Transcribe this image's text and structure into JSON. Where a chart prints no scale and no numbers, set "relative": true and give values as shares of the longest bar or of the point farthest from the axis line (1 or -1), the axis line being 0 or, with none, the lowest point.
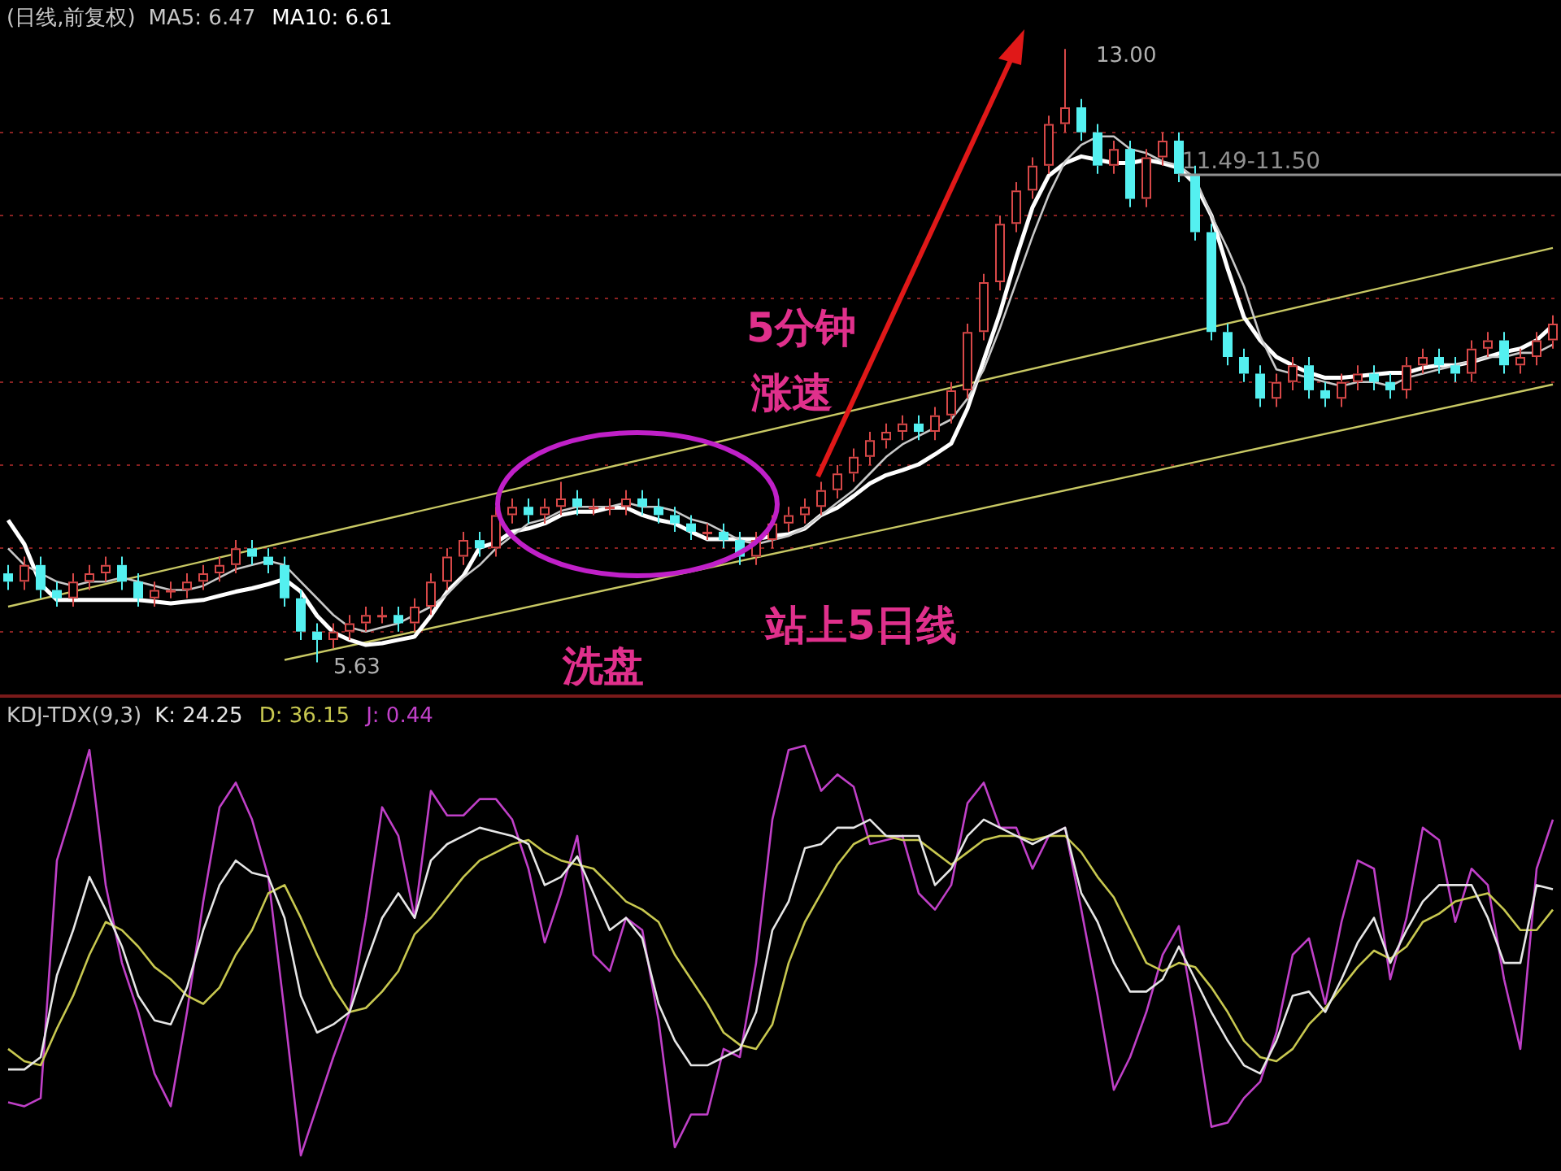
{
  "chart_data": [
    {
      "type": "candlestick",
      "title": "(日线,前复权)",
      "legend": "top left",
      "grid": "y",
      "tick_labels": false,
      "marker": "none",
      "categories": [
        null,
        null,
        null,
        null,
        null,
        null,
        null,
        null,
        null,
        null,
        null,
        null,
        null,
        null,
        null,
        null,
        null,
        null,
        null,
        null,
        null,
        null,
        null,
        null,
        null,
        null,
        null,
        null,
        null,
        null,
        null,
        null,
        null,
        null,
        null,
        null,
        null,
        null,
        null,
        null,
        null,
        null,
        null,
        null,
        null,
        null,
        null,
        null,
        null,
        null,
        null,
        null,
        null,
        null,
        null,
        null,
        null,
        null,
        null,
        null,
        null,
        null,
        null,
        null,
        null,
        null,
        null,
        null,
        null,
        null,
        null,
        null,
        null,
        null,
        null,
        null,
        null,
        null,
        null,
        null,
        null,
        null,
        null,
        null,
        null,
        null,
        null,
        null,
        null,
        null,
        null,
        null,
        null,
        null,
        null,
        null
      ],
      "ohlc": [
        [
          6.7,
          6.8,
          6.5,
          6.6
        ],
        [
          6.6,
          6.9,
          6.5,
          6.8
        ],
        [
          6.8,
          6.9,
          6.4,
          6.5
        ],
        [
          6.5,
          6.6,
          6.3,
          6.4
        ],
        [
          6.4,
          6.7,
          6.3,
          6.6
        ],
        [
          6.6,
          6.8,
          6.5,
          6.7
        ],
        [
          6.7,
          6.9,
          6.6,
          6.8
        ],
        [
          6.8,
          6.9,
          6.5,
          6.6
        ],
        [
          6.6,
          6.7,
          6.3,
          6.4
        ],
        [
          6.4,
          6.6,
          6.3,
          6.5
        ],
        [
          6.5,
          6.6,
          6.4,
          6.5
        ],
        [
          6.5,
          6.7,
          6.4,
          6.6
        ],
        [
          6.6,
          6.8,
          6.5,
          6.7
        ],
        [
          6.7,
          6.9,
          6.6,
          6.8
        ],
        [
          6.8,
          7.1,
          6.7,
          7.0
        ],
        [
          7.0,
          7.1,
          6.8,
          6.9
        ],
        [
          6.9,
          7.0,
          6.7,
          6.8
        ],
        [
          6.8,
          6.9,
          6.3,
          6.4
        ],
        [
          6.4,
          6.5,
          5.9,
          6.0
        ],
        [
          6.0,
          6.1,
          5.63,
          5.9
        ],
        [
          5.9,
          6.1,
          5.8,
          6.0
        ],
        [
          6.0,
          6.2,
          5.9,
          6.1
        ],
        [
          6.1,
          6.3,
          6.0,
          6.2
        ],
        [
          6.2,
          6.3,
          6.1,
          6.2
        ],
        [
          6.2,
          6.3,
          6.0,
          6.1
        ],
        [
          6.1,
          6.4,
          6.0,
          6.3
        ],
        [
          6.3,
          6.7,
          6.2,
          6.6
        ],
        [
          6.6,
          7.0,
          6.5,
          6.9
        ],
        [
          6.9,
          7.2,
          6.8,
          7.1
        ],
        [
          7.1,
          7.2,
          6.9,
          7.0
        ],
        [
          7.0,
          7.5,
          6.9,
          7.4
        ],
        [
          7.4,
          7.6,
          7.3,
          7.5
        ],
        [
          7.5,
          7.6,
          7.3,
          7.4
        ],
        [
          7.4,
          7.6,
          7.3,
          7.5
        ],
        [
          7.5,
          7.8,
          7.4,
          7.6
        ],
        [
          7.6,
          7.7,
          7.4,
          7.5
        ],
        [
          7.5,
          7.6,
          7.4,
          7.5
        ],
        [
          7.5,
          7.6,
          7.4,
          7.5
        ],
        [
          7.5,
          7.7,
          7.4,
          7.6
        ],
        [
          7.6,
          7.7,
          7.4,
          7.5
        ],
        [
          7.5,
          7.6,
          7.3,
          7.4
        ],
        [
          7.4,
          7.5,
          7.2,
          7.3
        ],
        [
          7.3,
          7.4,
          7.1,
          7.2
        ],
        [
          7.2,
          7.3,
          7.1,
          7.2
        ],
        [
          7.2,
          7.3,
          7.0,
          7.1
        ],
        [
          7.1,
          7.2,
          6.8,
          6.9
        ],
        [
          6.9,
          7.2,
          6.8,
          7.1
        ],
        [
          7.1,
          7.4,
          7.0,
          7.3
        ],
        [
          7.3,
          7.5,
          7.2,
          7.4
        ],
        [
          7.4,
          7.6,
          7.3,
          7.5
        ],
        [
          7.5,
          7.8,
          7.4,
          7.7
        ],
        [
          7.7,
          8.0,
          7.6,
          7.9
        ],
        [
          7.9,
          8.2,
          7.8,
          8.1
        ],
        [
          8.1,
          8.4,
          8.0,
          8.3
        ],
        [
          8.3,
          8.5,
          8.2,
          8.4
        ],
        [
          8.4,
          8.6,
          8.3,
          8.5
        ],
        [
          8.5,
          8.6,
          8.3,
          8.4
        ],
        [
          8.4,
          8.7,
          8.3,
          8.6
        ],
        [
          8.6,
          9.0,
          8.5,
          8.9
        ],
        [
          8.9,
          9.7,
          8.8,
          9.6
        ],
        [
          9.6,
          10.3,
          9.5,
          10.2
        ],
        [
          10.2,
          11.0,
          10.1,
          10.9
        ],
        [
          10.9,
          11.4,
          10.8,
          11.3
        ],
        [
          11.3,
          11.7,
          11.2,
          11.6
        ],
        [
          11.6,
          12.2,
          11.5,
          12.1
        ],
        [
          12.1,
          13.0,
          12.0,
          12.3
        ],
        [
          12.3,
          12.4,
          11.9,
          12.0
        ],
        [
          12.0,
          12.1,
          11.5,
          11.6
        ],
        [
          11.6,
          11.9,
          11.5,
          11.8
        ],
        [
          11.8,
          11.9,
          11.1,
          11.2
        ],
        [
          11.2,
          11.8,
          11.1,
          11.7
        ],
        [
          11.7,
          12.0,
          11.6,
          11.9
        ],
        [
          11.9,
          12.0,
          11.4,
          11.5
        ],
        [
          11.5,
          11.6,
          10.7,
          10.8
        ],
        [
          10.8,
          10.9,
          9.5,
          9.6
        ],
        [
          9.6,
          9.7,
          9.2,
          9.3
        ],
        [
          9.3,
          9.4,
          9.0,
          9.1
        ],
        [
          9.1,
          9.2,
          8.7,
          8.8
        ],
        [
          8.8,
          9.1,
          8.7,
          9.0
        ],
        [
          9.0,
          9.3,
          8.9,
          9.2
        ],
        [
          9.2,
          9.3,
          8.8,
          8.9
        ],
        [
          8.9,
          9.0,
          8.7,
          8.8
        ],
        [
          8.8,
          9.1,
          8.7,
          9.0
        ],
        [
          9.0,
          9.2,
          8.9,
          9.1
        ],
        [
          9.1,
          9.2,
          8.9,
          9.0
        ],
        [
          9.0,
          9.1,
          8.8,
          8.9
        ],
        [
          8.9,
          9.3,
          8.8,
          9.2
        ],
        [
          9.2,
          9.4,
          9.1,
          9.3
        ],
        [
          9.3,
          9.4,
          9.1,
          9.2
        ],
        [
          9.2,
          9.3,
          9.0,
          9.1
        ],
        [
          9.1,
          9.5,
          9.0,
          9.4
        ],
        [
          9.4,
          9.6,
          9.3,
          9.5
        ],
        [
          9.5,
          9.6,
          9.1,
          9.2
        ],
        [
          9.2,
          9.4,
          9.1,
          9.3
        ],
        [
          9.3,
          9.6,
          9.2,
          9.5
        ],
        [
          9.5,
          9.8,
          9.4,
          9.7
        ]
      ],
      "series": [
        {
          "name": "MA5: 6.47",
          "type": "line",
          "color": "#c8c8c8",
          "values": [
            7.0,
            6.8,
            6.7,
            6.6,
            6.55,
            6.6,
            6.6,
            6.65,
            6.6,
            6.55,
            6.5,
            6.5,
            6.55,
            6.65,
            6.75,
            6.8,
            6.85,
            6.8,
            6.6,
            6.4,
            6.2,
            6.05,
            6.0,
            6.05,
            6.1,
            6.2,
            6.3,
            6.45,
            6.65,
            6.8,
            7.0,
            7.15,
            7.3,
            7.35,
            7.45,
            7.5,
            7.5,
            7.5,
            7.55,
            7.5,
            7.5,
            7.45,
            7.35,
            7.3,
            7.2,
            7.1,
            7.05,
            7.1,
            7.15,
            7.25,
            7.4,
            7.55,
            7.7,
            7.9,
            8.1,
            8.25,
            8.35,
            8.45,
            8.55,
            8.8,
            9.15,
            9.65,
            10.2,
            10.75,
            11.25,
            11.65,
            11.85,
            11.95,
            11.95,
            11.8,
            11.75,
            11.65,
            11.6,
            11.45,
            11.0,
            10.6,
            10.15,
            9.55,
            9.15,
            9.1,
            9.05,
            9.0,
            8.95,
            9.0,
            9.0,
            8.95,
            9.05,
            9.1,
            9.15,
            9.2,
            9.25,
            9.3,
            9.3,
            9.35,
            9.35,
            9.45
          ]
        },
        {
          "name": "MA10: 6.61",
          "type": "line",
          "color": "#ffffff",
          "values": [
            7.34,
            7.05,
            6.57,
            6.38,
            6.38,
            6.38,
            6.38,
            6.38,
            6.38,
            6.36,
            6.34,
            6.36,
            6.38,
            6.43,
            6.48,
            6.52,
            6.57,
            6.63,
            6.48,
            6.19,
            5.99,
            5.9,
            5.84,
            5.86,
            5.9,
            5.94,
            6.19,
            6.48,
            6.67,
            7.01,
            7.07,
            7.2,
            7.24,
            7.3,
            7.4,
            7.44,
            7.44,
            7.49,
            7.49,
            7.4,
            7.34,
            7.3,
            7.2,
            7.11,
            7.11,
            7.11,
            7.11,
            7.15,
            7.17,
            7.24,
            7.4,
            7.49,
            7.63,
            7.78,
            7.88,
            7.94,
            8.01,
            8.13,
            8.26,
            8.68,
            9.26,
            9.83,
            10.5,
            11.1,
            11.48,
            11.63,
            11.71,
            11.67,
            11.63,
            11.63,
            11.67,
            11.63,
            11.57,
            11.38,
            11.0,
            10.36,
            9.78,
            9.5,
            9.3,
            9.2,
            9.11,
            9.05,
            9.05,
            9.07,
            9.09,
            9.11,
            9.11,
            9.17,
            9.2,
            9.2,
            9.24,
            9.3,
            9.36,
            9.4,
            9.5,
            9.68
          ]
        },
        {
          "type": "line",
          "color": "#c8c864",
          "values": [
            6.3,
            null,
            null,
            null,
            null,
            null,
            null,
            null,
            null,
            null,
            null,
            null,
            null,
            null,
            null,
            null,
            null,
            null,
            null,
            null,
            null,
            null,
            null,
            null,
            null,
            null,
            null,
            null,
            null,
            null,
            null,
            null,
            null,
            null,
            null,
            null,
            null,
            null,
            null,
            null,
            null,
            null,
            null,
            null,
            null,
            null,
            null,
            null,
            null,
            null,
            null,
            null,
            null,
            null,
            null,
            null,
            null,
            null,
            null,
            null,
            null,
            null,
            null,
            null,
            null,
            null,
            null,
            null,
            null,
            null,
            null,
            null,
            null,
            null,
            null,
            null,
            null,
            null,
            null,
            null,
            null,
            null,
            null,
            null,
            null,
            null,
            null,
            null,
            null,
            null,
            null,
            null,
            null,
            null,
            null,
            10.61
          ]
        },
        {
          "type": "line",
          "color": "#c8c864",
          "values": [
            null,
            null,
            null,
            null,
            null,
            null,
            null,
            null,
            null,
            null,
            null,
            null,
            null,
            null,
            null,
            null,
            null,
            5.66,
            null,
            null,
            null,
            null,
            null,
            null,
            null,
            null,
            null,
            null,
            null,
            null,
            null,
            null,
            null,
            null,
            null,
            null,
            null,
            null,
            null,
            null,
            null,
            null,
            null,
            null,
            null,
            null,
            null,
            null,
            null,
            null,
            null,
            null,
            null,
            null,
            null,
            null,
            null,
            null,
            null,
            null,
            null,
            null,
            null,
            null,
            null,
            null,
            null,
            null,
            null,
            null,
            null,
            null,
            null,
            null,
            null,
            null,
            null,
            null,
            null,
            null,
            null,
            null,
            null,
            null,
            null,
            null,
            null,
            null,
            null,
            null,
            null,
            null,
            null,
            null,
            null,
            8.97
          ]
        }
      ],
      "yticks": [
        {
          "value": 6,
          "label": null
        },
        {
          "value": 7,
          "label": null
        },
        {
          "value": 8,
          "label": null
        },
        {
          "value": 9,
          "label": null
        },
        {
          "value": 10,
          "label": null
        },
        {
          "value": 11,
          "label": null
        },
        {
          "value": 12,
          "label": null
        }
      ],
      "ref_lines": [
        {
          "axis": "y",
          "value": 11.49,
          "label": "11.49-11.50",
          "color": "#909090"
        }
      ],
      "annotations": [
        "13.00",
        "5.63",
        "5分钟",
        "涨速",
        "站上5日线",
        "洗盘"
      ]
    },
    {
      "type": "line",
      "title": "KDJ-TDX(9,3)",
      "relative": true,
      "legend": "top left",
      "tick_labels": false,
      "marker": "none",
      "categories": [
        null,
        null,
        null,
        null,
        null,
        null,
        null,
        null,
        null,
        null,
        null,
        null,
        null,
        null,
        null,
        null,
        null,
        null,
        null,
        null,
        null,
        null,
        null,
        null,
        null,
        null,
        null,
        null,
        null,
        null,
        null,
        null,
        null,
        null,
        null,
        null,
        null,
        null,
        null,
        null,
        null,
        null,
        null,
        null,
        null,
        null,
        null,
        null,
        null,
        null,
        null,
        null,
        null,
        null,
        null,
        null,
        null,
        null,
        null,
        null,
        null,
        null,
        null,
        null,
        null,
        null,
        null,
        null,
        null,
        null,
        null,
        null,
        null,
        null,
        null,
        null,
        null,
        null,
        null,
        null,
        null,
        null,
        null,
        null,
        null,
        null,
        null,
        null,
        null,
        null,
        null,
        null,
        null,
        null,
        null,
        null
      ],
      "series": [
        {
          "name": "K: 24.25",
          "color": "#e6e6e6",
          "values": [
            0.21,
            0.21,
            0.24,
            0.44,
            0.55,
            0.68,
            0.6,
            0.51,
            0.39,
            0.33,
            0.32,
            0.41,
            0.55,
            0.66,
            0.72,
            0.69,
            0.68,
            0.58,
            0.39,
            0.3,
            0.32,
            0.35,
            0.47,
            0.58,
            0.64,
            0.58,
            0.72,
            0.76,
            0.78,
            0.8,
            0.79,
            0.78,
            0.76,
            0.66,
            0.68,
            0.73,
            0.64,
            0.55,
            0.58,
            0.53,
            0.37,
            0.28,
            0.22,
            0.22,
            0.24,
            0.26,
            0.35,
            0.55,
            0.62,
            0.75,
            0.76,
            0.8,
            0.8,
            0.82,
            0.78,
            0.78,
            0.78,
            0.66,
            0.7,
            0.78,
            0.82,
            0.8,
            0.78,
            0.76,
            0.78,
            0.8,
            0.64,
            0.57,
            0.47,
            0.4,
            0.4,
            0.43,
            0.51,
            0.43,
            0.35,
            0.28,
            0.22,
            0.2,
            0.28,
            0.39,
            0.4,
            0.35,
            0.43,
            0.52,
            0.58,
            0.47,
            0.55,
            0.62,
            0.66,
            0.66,
            0.66,
            0.58,
            0.47,
            0.47,
            0.66,
            0.65
          ]
        },
        {
          "name": "D: 36.15",
          "color": "#c8c850",
          "values": [
            0.26,
            0.23,
            0.22,
            0.31,
            0.39,
            0.49,
            0.57,
            0.55,
            0.51,
            0.46,
            0.43,
            0.39,
            0.37,
            0.41,
            0.49,
            0.55,
            0.64,
            0.66,
            0.58,
            0.49,
            0.41,
            0.35,
            0.36,
            0.4,
            0.45,
            0.54,
            0.58,
            0.63,
            0.68,
            0.72,
            0.74,
            0.76,
            0.77,
            0.74,
            0.72,
            0.71,
            0.7,
            0.66,
            0.62,
            0.6,
            0.57,
            0.49,
            0.43,
            0.37,
            0.3,
            0.27,
            0.26,
            0.32,
            0.47,
            0.57,
            0.64,
            0.71,
            0.76,
            0.78,
            0.78,
            0.77,
            0.77,
            0.74,
            0.71,
            0.74,
            0.77,
            0.78,
            0.78,
            0.77,
            0.78,
            0.78,
            0.74,
            0.68,
            0.63,
            0.55,
            0.47,
            0.45,
            0.47,
            0.46,
            0.41,
            0.35,
            0.28,
            0.24,
            0.23,
            0.26,
            0.32,
            0.36,
            0.41,
            0.46,
            0.5,
            0.48,
            0.51,
            0.57,
            0.59,
            0.62,
            0.63,
            0.64,
            0.6,
            0.55,
            0.55,
            0.6
          ]
        },
        {
          "name": "J: 0.44",
          "color": "#c040c8",
          "values": [
            0.13,
            0.12,
            0.14,
            0.72,
            0.85,
            0.99,
            0.66,
            0.47,
            0.35,
            0.2,
            0.12,
            0.35,
            0.62,
            0.85,
            0.91,
            0.82,
            0.68,
            0.35,
            0,
            0.12,
            0.24,
            0.35,
            0.58,
            0.85,
            0.78,
            0.58,
            0.89,
            0.83,
            0.83,
            0.87,
            0.87,
            0.82,
            0.7,
            0.52,
            0.64,
            0.78,
            0.49,
            0.45,
            0.58,
            0.55,
            0.33,
            0.02,
            0.1,
            0.1,
            0.26,
            0.24,
            0.47,
            0.82,
            0.99,
            1,
            0.89,
            0.93,
            0.9,
            0.76,
            0.77,
            0.78,
            0.64,
            0.6,
            0.66,
            0.86,
            0.91,
            0.8,
            0.8,
            0.7,
            0.78,
            0.8,
            0.6,
            0.39,
            0.16,
            0.24,
            0.35,
            0.49,
            0.56,
            0.33,
            0.07,
            0.08,
            0.14,
            0.18,
            0.3,
            0.49,
            0.53,
            0.37,
            0.57,
            0.72,
            0.7,
            0.43,
            0.58,
            0.8,
            0.77,
            0.57,
            0.7,
            0.66,
            0.43,
            0.26,
            0.7,
            0.82
          ]
        }
      ]
    }
  ]
}
